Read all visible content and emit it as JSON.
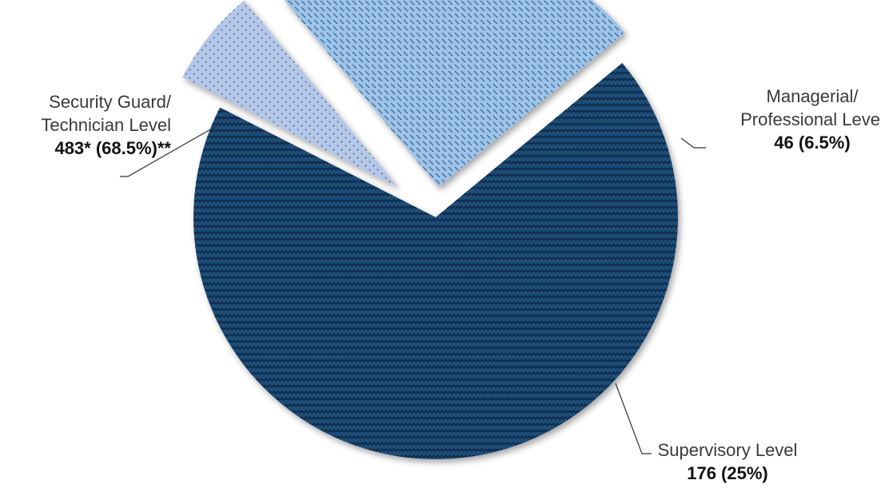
{
  "chart_data": {
    "type": "pie",
    "title": "",
    "slices": [
      {
        "name_lines": [
          "Security Guard/",
          "Technician Level"
        ],
        "value_label": "483* (68.5%)**",
        "value": 483,
        "percent": 68.5,
        "color": "#1f4e79",
        "pattern": "zigzag"
      },
      {
        "name_lines": [
          "Managerial/",
          "Professional Level"
        ],
        "value_label": "46 (6.5%)",
        "value": 46,
        "percent": 6.5,
        "color": "#b4c7e7",
        "pattern": "dots"
      },
      {
        "name_lines": [
          "Supervisory Level"
        ],
        "value_label": "176 (25%)",
        "value": 176,
        "percent": 25,
        "color": "#9dc3e6",
        "pattern": "hatch"
      }
    ]
  }
}
